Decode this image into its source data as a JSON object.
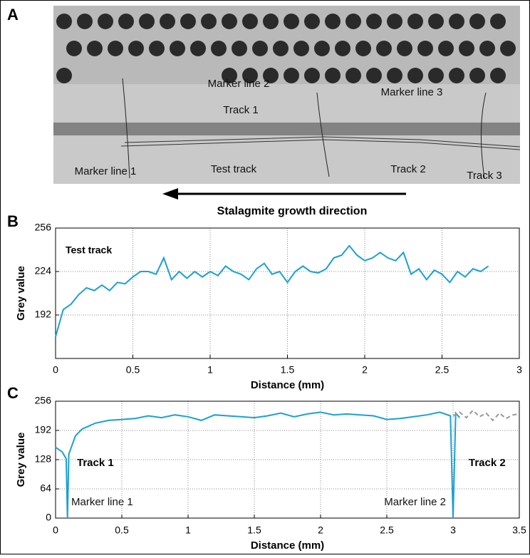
{
  "panel_a": {
    "label": "A",
    "annotations": [
      "Marker line 2",
      "Track 1",
      "Marker line 3",
      "Marker line 1",
      "Test track",
      "Track 2",
      "Track 3"
    ],
    "caption": "Stalagmite growth direction"
  },
  "chart_data": [
    {
      "type": "line",
      "panel": "B",
      "xlabel": "Distance (mm)",
      "ylabel": "Grey value",
      "annotations": [
        "Test track"
      ],
      "xlim": [
        0,
        3
      ],
      "xticks": [
        0,
        0.5,
        1,
        1.5,
        2,
        2.5,
        3
      ],
      "ylim": [
        160,
        256
      ],
      "yticks": [
        192,
        224,
        256
      ],
      "grid": true,
      "series": [
        {
          "color": "#1ba1cf",
          "dash": false,
          "x": [
            0,
            0.05,
            0.1,
            0.15,
            0.2,
            0.25,
            0.3,
            0.35,
            0.4,
            0.45,
            0.5,
            0.55,
            0.6,
            0.65,
            0.7,
            0.75,
            0.8,
            0.85,
            0.9,
            0.95,
            1,
            1.05,
            1.1,
            1.15,
            1.2,
            1.25,
            1.3,
            1.35,
            1.4,
            1.45,
            1.5,
            1.55,
            1.6,
            1.65,
            1.7,
            1.75,
            1.8,
            1.85,
            1.9,
            1.95,
            2,
            2.05,
            2.1,
            2.15,
            2.2,
            2.25,
            2.3,
            2.35,
            2.4,
            2.45,
            2.5,
            2.55,
            2.6,
            2.65,
            2.7,
            2.75,
            2.8
          ],
          "values": [
            176,
            196,
            200,
            207,
            212,
            210,
            214,
            210,
            216,
            215,
            220,
            224,
            224,
            222,
            234,
            218,
            224,
            219,
            224,
            220,
            224,
            221,
            228,
            224,
            222,
            218,
            226,
            230,
            222,
            224,
            216,
            224,
            228,
            224,
            223,
            226,
            234,
            236,
            243,
            236,
            232,
            234,
            238,
            234,
            232,
            238,
            222,
            226,
            218,
            225,
            222,
            216,
            224,
            220,
            226,
            224,
            228
          ]
        }
      ]
    },
    {
      "type": "line",
      "panel": "C",
      "xlabel": "Distance (mm)",
      "ylabel": "Grey value",
      "annotations": [
        "Track 1",
        "Track 2",
        "Marker line 1",
        "Marker line 2"
      ],
      "xlim": [
        0,
        3.5
      ],
      "xticks": [
        0,
        0.5,
        1,
        1.5,
        2,
        2.5,
        3,
        3.5
      ],
      "ylim": [
        0,
        256
      ],
      "yticks": [
        0,
        64,
        128,
        192,
        256
      ],
      "grid": true,
      "series": [
        {
          "color": "#1ba1cf",
          "dash": false,
          "x": [
            0,
            0.05,
            0.08,
            0.09,
            0.1,
            0.15,
            0.2,
            0.3,
            0.4,
            0.5,
            0.6,
            0.7,
            0.8,
            0.9,
            1,
            1.1,
            1.2,
            1.3,
            1.4,
            1.5,
            1.6,
            1.7,
            1.8,
            1.9,
            2,
            2.1,
            2.2,
            2.3,
            2.4,
            2.5,
            2.6,
            2.7,
            2.8,
            2.9,
            2.98,
            3,
            3.02,
            3.05
          ],
          "values": [
            155,
            145,
            130,
            0,
            140,
            180,
            195,
            208,
            214,
            216,
            218,
            224,
            220,
            226,
            222,
            214,
            226,
            224,
            222,
            220,
            224,
            230,
            222,
            228,
            232,
            226,
            228,
            226,
            224,
            216,
            218,
            222,
            226,
            232,
            224,
            0,
            230,
            220
          ]
        },
        {
          "color": "#999999",
          "dash": true,
          "x": [
            3,
            3.05,
            3.1,
            3.15,
            3.2,
            3.25,
            3.3,
            3.35,
            3.4,
            3.45,
            3.5
          ],
          "values": [
            224,
            232,
            220,
            236,
            222,
            230,
            214,
            230,
            218,
            226,
            228
          ]
        }
      ]
    }
  ]
}
